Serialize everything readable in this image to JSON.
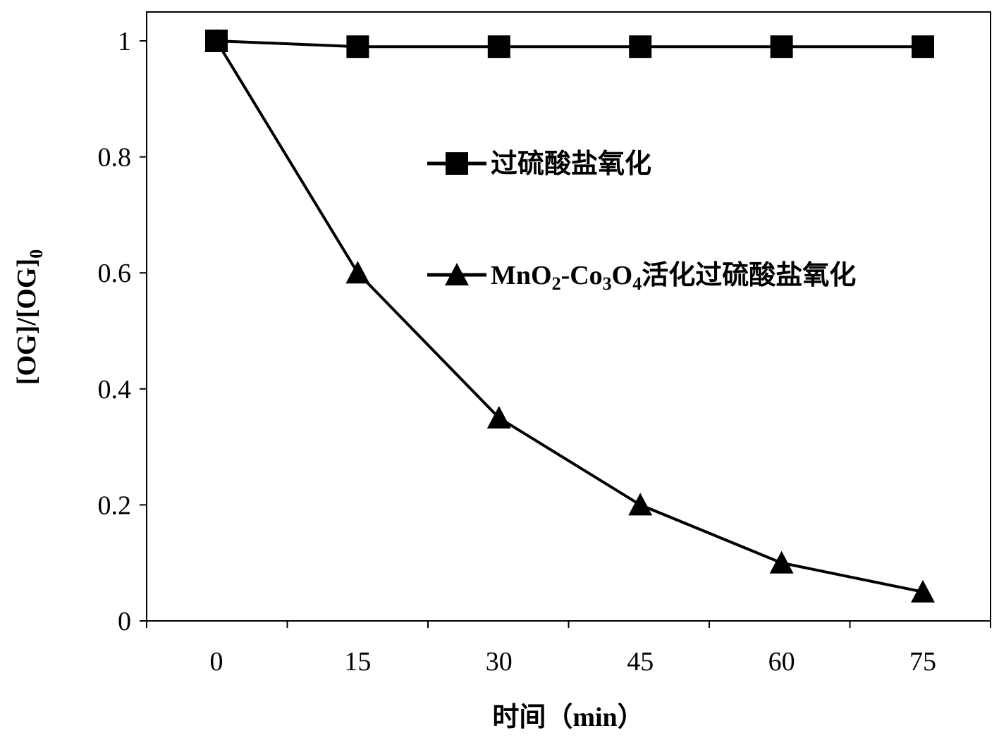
{
  "chart_data": {
    "type": "line",
    "x": [
      0,
      15,
      30,
      45,
      60,
      75
    ],
    "xticks": [
      "0",
      "15",
      "30",
      "45",
      "60",
      "75"
    ],
    "yticks": [
      "0",
      "0.2",
      "0.4",
      "0.6",
      "0.8",
      "1"
    ],
    "xlabel": "时间（min）",
    "ylabel": "[OG]/[OG]",
    "ylabel_subscript": "0",
    "ylim": [
      0,
      1
    ],
    "grid": false,
    "legend_position": "center-right",
    "series": [
      {
        "name": "过硫酸盐氧化",
        "marker": "square",
        "color": "#000000",
        "values": [
          1.0,
          0.99,
          0.99,
          0.99,
          0.99,
          0.99
        ]
      },
      {
        "name": "MnO₂-Co₃O₄活化过硫酸盐氧化",
        "name_parts": [
          {
            "t": "MnO",
            "sub": false
          },
          {
            "t": "2",
            "sub": true
          },
          {
            "t": "-Co",
            "sub": false
          },
          {
            "t": "3",
            "sub": true
          },
          {
            "t": "O",
            "sub": false
          },
          {
            "t": "4",
            "sub": true
          },
          {
            "t": "活化过硫酸盐氧化",
            "sub": false
          }
        ],
        "marker": "triangle",
        "color": "#000000",
        "values": [
          1.0,
          0.6,
          0.35,
          0.2,
          0.1,
          0.05
        ]
      }
    ]
  }
}
